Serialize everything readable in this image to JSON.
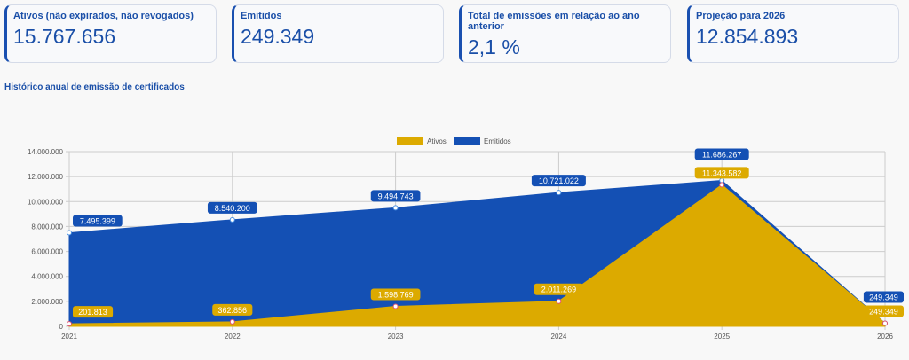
{
  "cards": [
    {
      "title": "Ativos (não expirados, não revogados)",
      "value": "15.767.656"
    },
    {
      "title": "Emitidos",
      "value": "249.349"
    },
    {
      "title": "Total de emissões em relação ao ano anterior",
      "value": "2,1 %"
    },
    {
      "title": "Projeção para 2026",
      "value": "12.854.893"
    }
  ],
  "section_title": "Histórico anual de emissão de certificados",
  "chart_data": {
    "type": "area",
    "categories": [
      "2021",
      "2022",
      "2023",
      "2024",
      "2025",
      "2026"
    ],
    "ylim": [
      0,
      14000000
    ],
    "yticks": [
      "0",
      "2.000.000",
      "4.000.000",
      "6.000.000",
      "8.000.000",
      "10.000.000",
      "12.000.000",
      "14.000.000"
    ],
    "grid": true,
    "legend": "top",
    "series": [
      {
        "name": "Emitidos",
        "color": "#1450b4",
        "values": [
          7495399,
          8540200,
          9494743,
          10721022,
          11686267,
          249349
        ],
        "labels": [
          "7.495.399",
          "8.540.200",
          "9.494.743",
          "10.721.022",
          "11.686.267",
          "249.349"
        ]
      },
      {
        "name": "Ativos",
        "color": "#dcaa00",
        "values": [
          201813,
          362856,
          1598769,
          2011269,
          11343582,
          249349
        ],
        "labels": [
          "201.813",
          "362.856",
          "1.598.769",
          "2.011.269",
          "11.343.582",
          "249.349"
        ]
      }
    ]
  }
}
